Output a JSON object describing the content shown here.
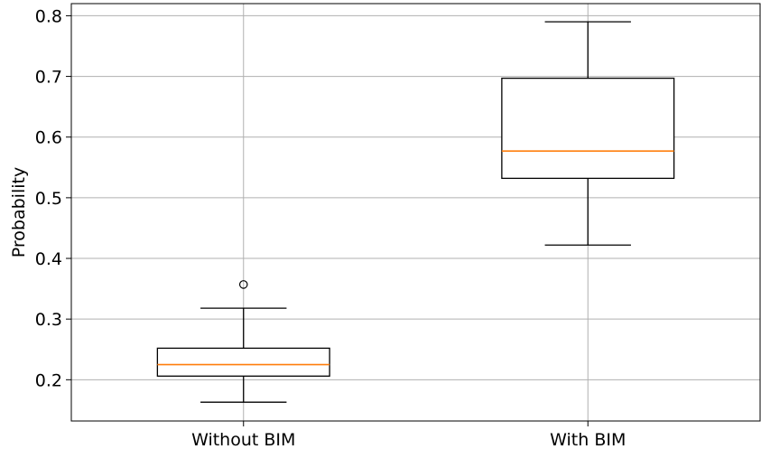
{
  "chart_data": {
    "type": "box",
    "title": "",
    "xlabel": "",
    "ylabel": "Probability",
    "ylim": [
      0.132,
      0.82
    ],
    "yticks": [
      "0.2",
      "0.3",
      "0.4",
      "0.5",
      "0.6",
      "0.7",
      "0.8"
    ],
    "grid": true,
    "categories": [
      "Without BIM",
      "With BIM"
    ],
    "boxes": [
      {
        "label": "Without BIM",
        "whisker_low": 0.163,
        "q1": 0.206,
        "median": 0.225,
        "q3": 0.252,
        "whisker_high": 0.318,
        "outliers": [
          0.357
        ]
      },
      {
        "label": "With BIM",
        "whisker_low": 0.422,
        "q1": 0.532,
        "median": 0.577,
        "q3": 0.697,
        "whisker_high": 0.79,
        "outliers": []
      }
    ],
    "colors": {
      "box": "#000000",
      "median": "#ff7f0e",
      "grid": "#b0b0b0"
    }
  }
}
